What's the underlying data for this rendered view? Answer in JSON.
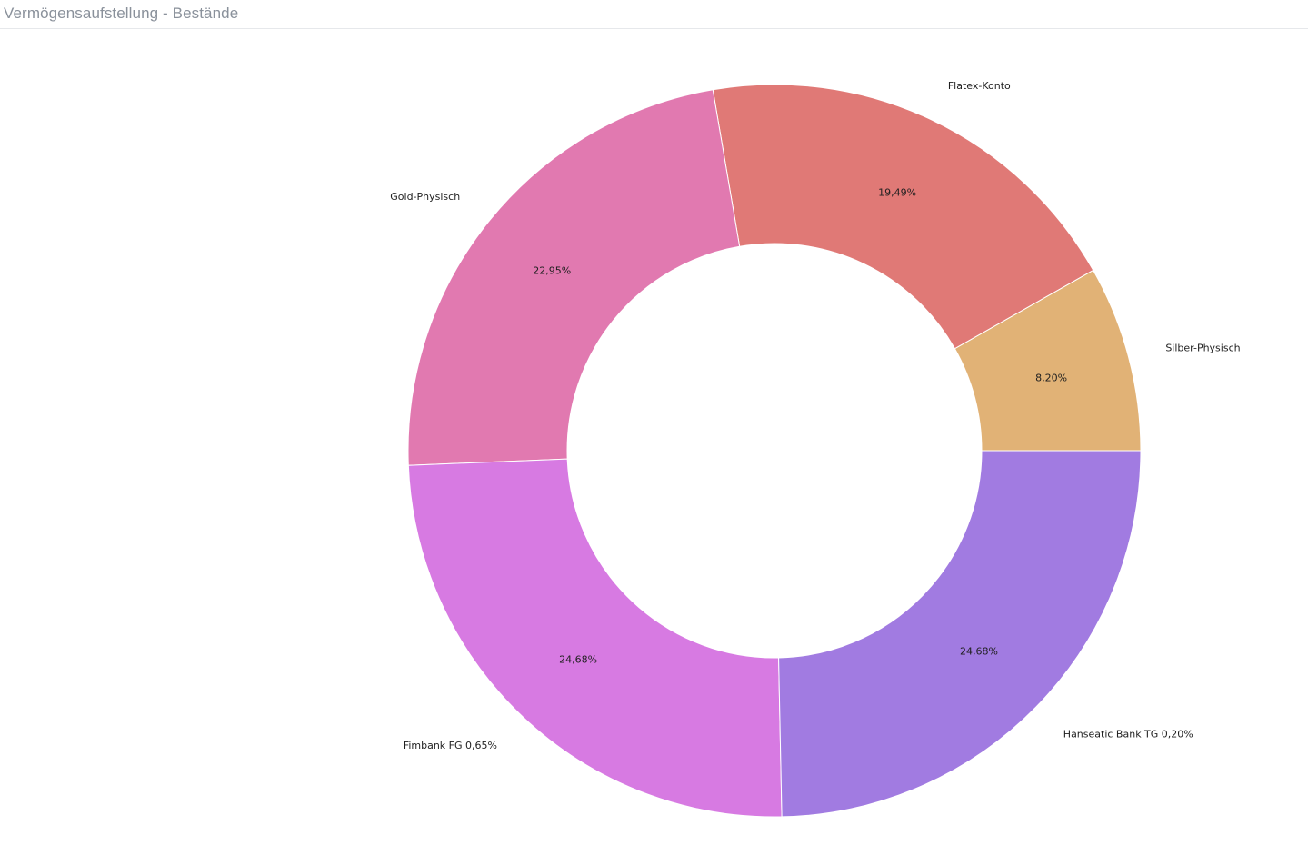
{
  "header": {
    "title": "Vermögensaufstellung - Bestände"
  },
  "chart_data": {
    "type": "pie",
    "variant": "donut",
    "title": "",
    "categories": [
      "Silber-Physisch",
      "Flatex-Konto",
      "Gold-Physisch",
      "Fimbank FG",
      "Hanseatic Bank TG"
    ],
    "values": [
      8.2,
      19.49,
      22.95,
      24.68,
      24.68
    ],
    "slice_labels": [
      "8,20%",
      "19,49%",
      "22,95%",
      "24,68%",
      "24,68%"
    ],
    "outer_labels": [
      "Silber-Physisch",
      "Flatex-Konto",
      "Gold-Physisch",
      "Fimbank FG 0,65%",
      "Hanseatic Bank TG 0,20%"
    ],
    "extra_slices": [
      {
        "name": "Fimbank FG",
        "value": 0.65,
        "label": "0,65%"
      },
      {
        "name": "Hanseatic Bank TG",
        "value": 0.2,
        "label": "0,20%"
      }
    ],
    "colors": [
      "#e1b276",
      "#e07976",
      "#e179b0",
      "#d77ae2",
      "#a17be1"
    ],
    "legend": "none",
    "start": "right",
    "direction": "counterclockwise"
  }
}
